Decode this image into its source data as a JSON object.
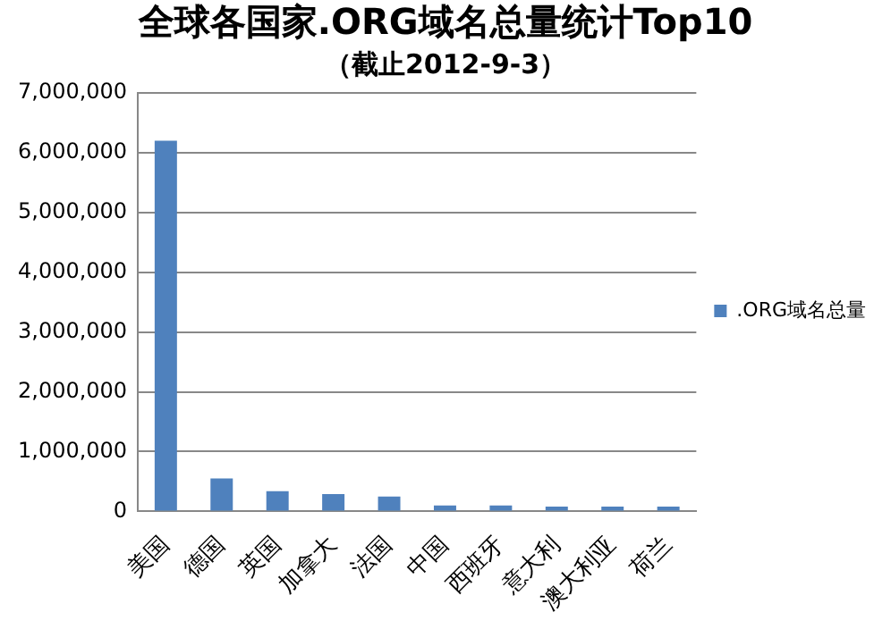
{
  "chart_data": {
    "type": "bar",
    "title": "全球各国家.ORG域名总量统计Top10",
    "subtitle": "（截止2012-9-3）",
    "categories": [
      "美国",
      "德国",
      "英国",
      "加拿大",
      "法国",
      "中国",
      "西班牙",
      "意大利",
      "澳大利亚",
      "荷兰"
    ],
    "series": [
      {
        "name": ".ORG域名总量",
        "color": "#4f81bd",
        "values": [
          6200000,
          550000,
          340000,
          290000,
          250000,
          100000,
          100000,
          80000,
          80000,
          80000
        ]
      }
    ],
    "ylim": [
      0,
      7000000
    ],
    "yticks": [
      0,
      {
        "value": 1000000,
        "label": "1,000,000"
      },
      {
        "value": 2000000,
        "label": "2,000,000"
      },
      {
        "value": 3000000,
        "label": "3,000,000"
      },
      {
        "value": 4000000,
        "label": "4,000,000"
      },
      {
        "value": 5000000,
        "label": "5,000,000"
      },
      {
        "value": 6000000,
        "label": "6,000,000"
      },
      {
        "value": 7000000,
        "label": "7,000,000"
      }
    ],
    "grid": "y",
    "legend": "right"
  }
}
